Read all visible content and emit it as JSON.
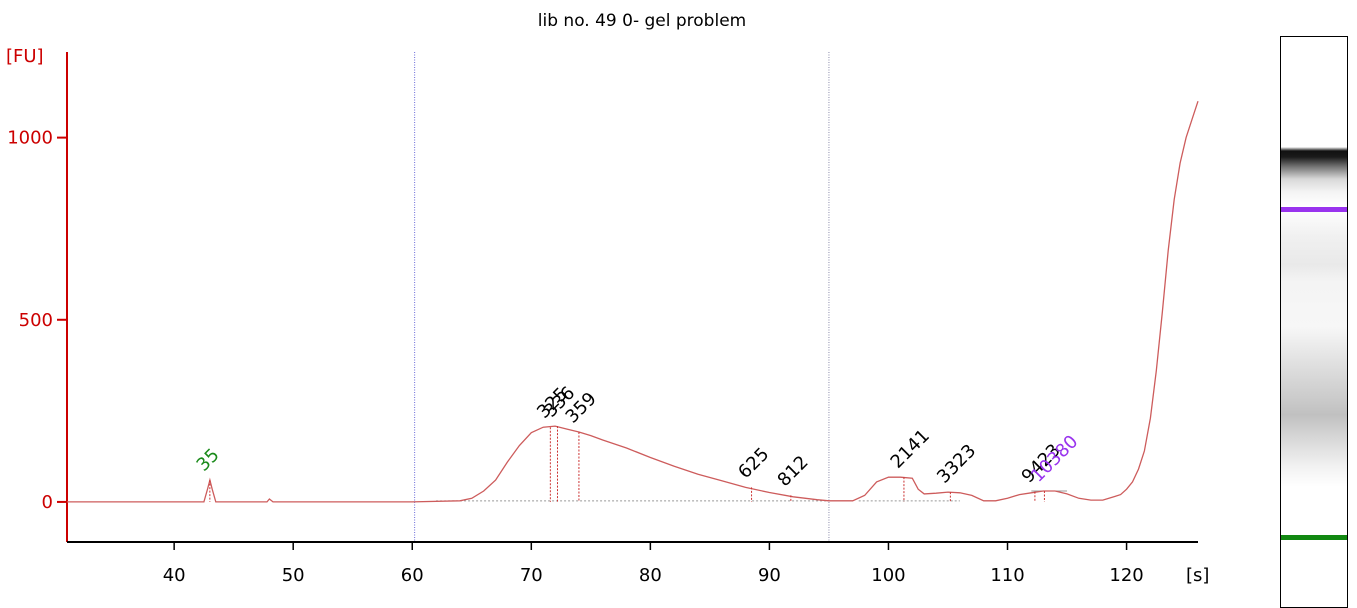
{
  "chart_data": {
    "type": "line",
    "title": "lib no. 49 0- gel problem",
    "ylabel": "[FU]",
    "xlabel": "[s]",
    "xlim": [
      31,
      126
    ],
    "ylim": [
      -110,
      1235
    ],
    "xticks": [
      40,
      50,
      60,
      70,
      80,
      90,
      100,
      110,
      120
    ],
    "yticks": [
      0,
      500,
      1000
    ],
    "grid": false,
    "series": [
      {
        "color": "#cd5c5c",
        "x": [
          31,
          42.5,
          42.8,
          43.0,
          43.2,
          43.5,
          47.8,
          48.0,
          48.3,
          60,
          64,
          65,
          66,
          67,
          68,
          69,
          70,
          71,
          72,
          73,
          74,
          75,
          76,
          78,
          80,
          82,
          84,
          86,
          88,
          90,
          92,
          94,
          95,
          97,
          98,
          99,
          100,
          101,
          102,
          102.5,
          103,
          104,
          105,
          106,
          107,
          108,
          109,
          110,
          111,
          112,
          113,
          114,
          115,
          116,
          117,
          118,
          119,
          119.5,
          120,
          120.5,
          121,
          121.5,
          122,
          122.5,
          123,
          123.5,
          124,
          124.5,
          125,
          125.5,
          126
        ],
        "y": [
          0,
          0,
          35,
          60,
          35,
          0,
          0,
          8,
          0,
          0,
          3,
          10,
          30,
          60,
          110,
          155,
          190,
          205,
          208,
          200,
          192,
          182,
          170,
          148,
          122,
          98,
          76,
          58,
          40,
          26,
          14,
          6,
          3,
          3,
          18,
          55,
          68,
          68,
          65,
          35,
          22,
          24,
          27,
          25,
          18,
          3,
          3,
          10,
          20,
          25,
          30,
          30,
          22,
          10,
          5,
          5,
          15,
          20,
          35,
          55,
          90,
          140,
          230,
          360,
          520,
          690,
          830,
          930,
          1000,
          1050,
          1100
        ]
      }
    ],
    "vlines": [
      {
        "x": 60.2,
        "color": "#6a6ad8"
      },
      {
        "x": 95.0,
        "color": "#8a8aaa"
      }
    ],
    "peaks": [
      {
        "label": "35",
        "x": 43.0,
        "y": 60,
        "color": "#1a8a1a"
      },
      {
        "label": "325",
        "x": 71.6,
        "y": 205,
        "color": "#000000"
      },
      {
        "label": "336",
        "x": 72.2,
        "y": 208,
        "color": "#000000"
      },
      {
        "label": "359",
        "x": 74.0,
        "y": 192,
        "color": "#000000"
      },
      {
        "label": "625",
        "x": 88.5,
        "y": 40,
        "color": "#000000"
      },
      {
        "label": "812",
        "x": 91.8,
        "y": 18,
        "color": "#000000"
      },
      {
        "label": "2141",
        "x": 101.3,
        "y": 68,
        "color": "#000000"
      },
      {
        "label": "3323",
        "x": 105.2,
        "y": 27,
        "color": "#000000"
      },
      {
        "label": "9423",
        "x": 112.3,
        "y": 28,
        "color": "#000000"
      },
      {
        "label": "10380",
        "x": 113.1,
        "y": 30,
        "color": "#9933ee"
      }
    ],
    "colors": {
      "axis": "#cc0000",
      "trace": "#cd5c5c",
      "lower_marker": "#1a8a1a",
      "upper_marker": "#9933ee",
      "baseline": "#999999"
    }
  },
  "gel": {
    "upper_marker_color": "#9933ee",
    "lower_marker_color": "#118811"
  }
}
